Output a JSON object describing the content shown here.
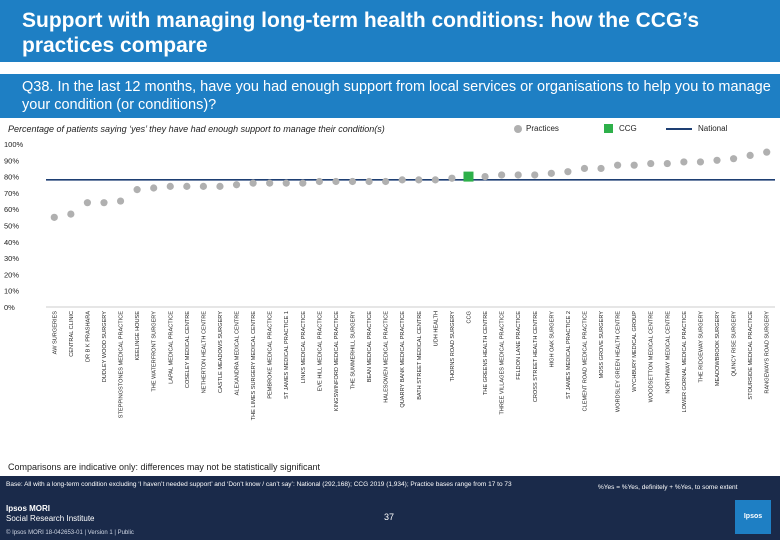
{
  "title": "Support with managing long-term health conditions: how the CCG’s practices compare",
  "question": "Q38. In the last 12 months, have you had enough support from local services or organisations to help you to manage your condition (or conditions)?",
  "subtitle": "Percentage of patients saying ‘yes’ they have had enough support to manage their condition(s)",
  "legend": {
    "practices": "Practices",
    "ccg": "CCG",
    "national": "National"
  },
  "colors": {
    "band": "#1e7fc4",
    "practice_marker": "#b0b0b0",
    "ccg_marker": "#2eb04a",
    "national_line": "#1e3f73",
    "footer": "#1a2a4a"
  },
  "note": "Comparisons are indicative only: differences may not be statistically significant",
  "footer": {
    "base": "Base: All with a long-term condition excluding ‘I haven’t needed support’ and ‘Don’t know / can’t say’: National (292,168); CCG 2019 (1,934); Practice bases range from 17 to 73",
    "key": "%Yes = %Yes, definitely + %Yes, to some extent",
    "brand_line1": "Ipsos MORI",
    "brand_line2": "Social Research Institute",
    "page": "37",
    "copyright": "© Ipsos MORI    18-042653-01 | Version 1 | Public",
    "logo": "Ipsos"
  },
  "chart_data": {
    "type": "scatter",
    "title": "Percentage of patients saying ‘yes’ they have had enough support to manage their condition(s)",
    "ylabel": "",
    "ylim": [
      0,
      100
    ],
    "yticks": [
      "0%",
      "10%",
      "20%",
      "30%",
      "40%",
      "50%",
      "60%",
      "70%",
      "80%",
      "90%",
      "100%"
    ],
    "national_value": 78,
    "categories": [
      "AW SURGERIES",
      "CENTRAL CLINIC",
      "DR B K PRASHARA",
      "DUDLEY WOOD SURGERY",
      "STEPPINGSTONES MEDICAL PRACTICE",
      "KEELINGE HOUSE",
      "THE WATERFRONT SURGERY",
      "LAPAL MEDICAL PRACTICE",
      "COSELEY MEDICAL CENTRE",
      "NETHERTON HEALTH CENTRE",
      "CASTLE MEADOWS SURGERY",
      "ALEXANDRA MEDICAL CENTRE",
      "THE LIMES SURGERY MEDICAL CENTRE",
      "PEMBROKE MEDICAL PRACTICE",
      "ST JAMES MEDICAL PRACTICE 1",
      "LINKS MEDICAL PRACTICE",
      "EVE HILL MEDICAL PRACTICE",
      "KINGSWINFORD MEDICAL PRACTICE",
      "THE SUMMERHILL SURGERY",
      "BEAN MEDICAL PRACTICE",
      "HALESOWEN MEDICAL PRACTICE",
      "QUARRY BANK MEDICAL PRACTICE",
      "BATH STREET MEDICAL CENTRE",
      "UDH HEALTH",
      "THORNS ROAD SURGERY",
      "CCG",
      "THE GREENS HEALTH CENTRE",
      "THREE VILLAGES MEDICAL PRACTICE",
      "FELDON LANE PRACTICE",
      "CROSS STREET HEALTH CENTRE",
      "HIGH OAK SURGERY",
      "ST JAMES MEDICAL PRACTICE 2",
      "CLEMENT ROAD MEDICAL PRACTICE",
      "MOSS GROVE SURGERY",
      "WORDSLEY GREEN HEALTH CENTRE",
      "WYCHBURY MEDICAL GROUP",
      "WOODSETTON MEDICAL CENTRE",
      "NORTHWAY MEDICAL CENTRE",
      "LOWER GORNAL MEDICAL PRACTICE",
      "THE RIDGEWAY SURGERY",
      "MEADOWBROOK SURGERY",
      "QUINCY RISE SURGERY",
      "STOURSIDE MEDICAL PRACTICE",
      "RANGEWAYS ROAD SURGERY"
    ],
    "values": [
      55,
      57,
      64,
      64,
      65,
      72,
      73,
      74,
      74,
      74,
      74,
      75,
      76,
      76,
      76,
      76,
      77,
      77,
      77,
      77,
      77,
      78,
      78,
      78,
      79,
      80,
      80,
      81,
      81,
      81,
      82,
      83,
      85,
      85,
      87,
      87,
      88,
      88,
      89,
      89,
      90,
      91,
      93,
      95
    ],
    "ccg_index": 25
  }
}
